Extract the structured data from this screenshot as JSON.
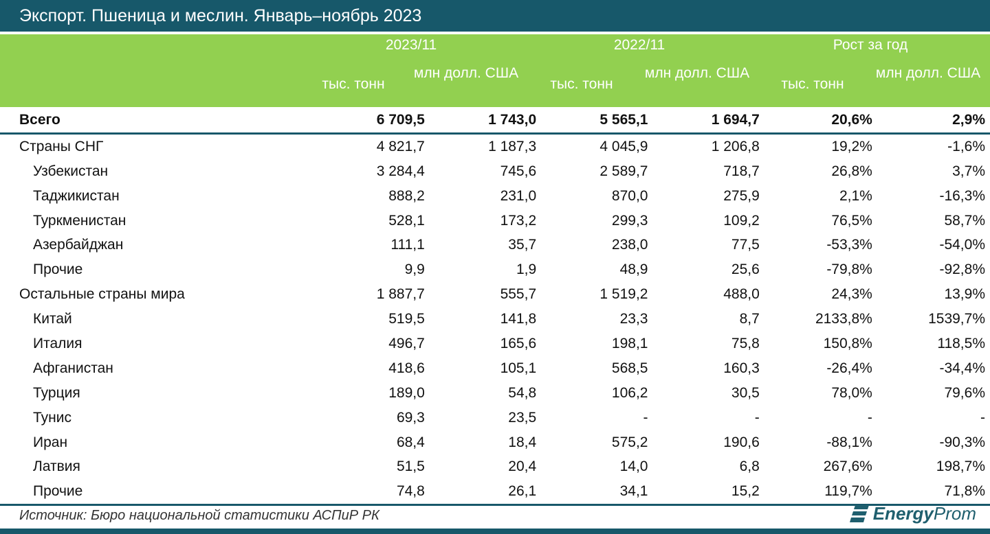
{
  "title": "Экспорт. Пшеница и меслин. Январь–ноябрь 2023",
  "header": {
    "groups": [
      "2023/11",
      "2022/11",
      "Рост за год"
    ],
    "units": [
      "тыс. тонн",
      "млн долл. США",
      "тыс. тонн",
      "млн долл. США",
      "тыс. тонн",
      "млн долл. США"
    ]
  },
  "rows": [
    [
      "Всего",
      "6 709,5",
      "1 743,0",
      "5 565,1",
      "1 694,7",
      "20,6%",
      "2,9%"
    ],
    [
      "Страны СНГ",
      "4 821,7",
      "1 187,3",
      "4 045,9",
      "1 206,8",
      "19,2%",
      "-1,6%"
    ],
    [
      "Узбекистан",
      "3 284,4",
      "745,6",
      "2 589,7",
      "718,7",
      "26,8%",
      "3,7%"
    ],
    [
      "Таджикистан",
      "888,2",
      "231,0",
      "870,0",
      "275,9",
      "2,1%",
      "-16,3%"
    ],
    [
      "Туркменистан",
      "528,1",
      "173,2",
      "299,3",
      "109,2",
      "76,5%",
      "58,7%"
    ],
    [
      "Азербайджан",
      "111,1",
      "35,7",
      "238,0",
      "77,5",
      "-53,3%",
      "-54,0%"
    ],
    [
      "Прочие",
      "9,9",
      "1,9",
      "48,9",
      "25,6",
      "-79,8%",
      "-92,8%"
    ],
    [
      "Остальные страны мира",
      "1 887,7",
      "555,7",
      "1 519,2",
      "488,0",
      "24,3%",
      "13,9%"
    ],
    [
      "Китай",
      "519,5",
      "141,8",
      "23,3",
      "8,7",
      "2133,8%",
      "1539,7%"
    ],
    [
      "Италия",
      "496,7",
      "165,6",
      "198,1",
      "75,8",
      "150,8%",
      "118,5%"
    ],
    [
      "Афганистан",
      "418,6",
      "105,1",
      "568,5",
      "160,3",
      "-26,4%",
      "-34,4%"
    ],
    [
      "Турция",
      "189,0",
      "54,8",
      "106,2",
      "30,5",
      "78,0%",
      "79,6%"
    ],
    [
      "Тунис",
      "69,3",
      "23,5",
      "-",
      "-",
      "-",
      "-"
    ],
    [
      "Иран",
      "68,4",
      "18,4",
      "575,2",
      "190,6",
      "-88,1%",
      "-90,3%"
    ],
    [
      "Латвия",
      "51,5",
      "20,4",
      "14,0",
      "6,8",
      "267,6%",
      "198,7%"
    ],
    [
      "Прочие",
      "74,8",
      "26,1",
      "34,1",
      "15,2",
      "119,7%",
      "71,8%"
    ]
  ],
  "source": "Источник: Бюро национальной статистики АСПиР РК",
  "logo": {
    "bold": "Energy",
    "light": "Prom"
  }
}
